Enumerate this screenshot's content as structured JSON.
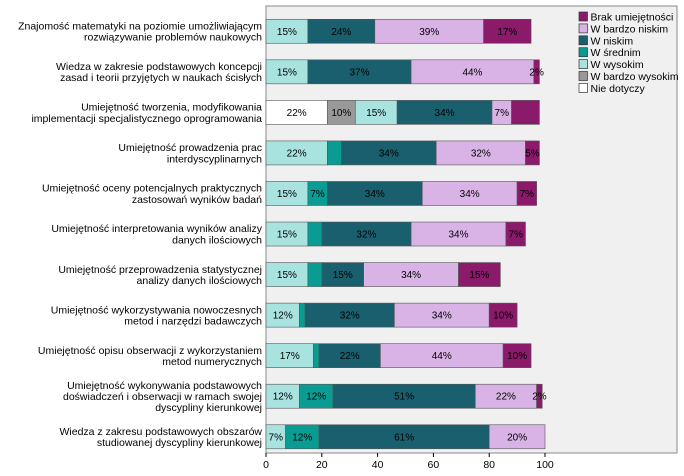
{
  "chart_data": {
    "type": "bar",
    "orientation": "horizontal",
    "stacked": true,
    "categories": [
      "Znajomość matematyki na poziomie umożliwiającym rozwiązywanie problemów naukowych",
      "Wiedza w zakresie podstawowych koncepcji zasad i teorii przyjętych w naukach ścisłych",
      "Umiejętność tworzenia, modyfikowania implementacji specjalistycznego oprogramowania",
      "Umiejętność prowadzenia prac interdyscyplinarnych",
      "Umiejętność oceny potencjalnych praktycznych zastosowań wyników badań",
      "Umiejętność interpretowania wyników analizy danych ilościowych",
      "Umiejętność przeprowadzenia statystycznej analizy danych ilościowych",
      "Umiejętność wykorzystywania nowoczesnych metod i narzędzi badawczych",
      "Umiejętność opisu obserwacji z wykorzystaniem metod numerycznych",
      "Umiejętność wykonywania podstawowych doświadczeń i obserwacji w ramach swojej dyscypliny kierunkowej",
      "Wiedza z zakresu podstawowych obszarów studiowanej dyscypliny kierunkowej"
    ],
    "category_lines": [
      [
        "Znajomość matematyki na poziomie umożliwiającym",
        "rozwiązywanie problemów naukowych"
      ],
      [
        "Wiedza w zakresie podstawowych koncepcji",
        "zasad i teorii przyjętych w naukach ścisłych"
      ],
      [
        "Umiejętność tworzenia, modyfikowania",
        "implementacji specjalistycznego oprogramowania"
      ],
      [
        "Umiejętność prowadzenia prac",
        "interdyscyplinarnych"
      ],
      [
        "Umiejętność oceny potencjalnych praktycznych",
        "zastosowań wyników badań"
      ],
      [
        "Umiejętność interpretowania wyników analizy",
        "danych ilościowych"
      ],
      [
        "Umiejętność przeprowadzenia statystycznej",
        "analizy danych ilościowych"
      ],
      [
        "Umiejętność wykorzystywania nowoczesnych",
        "metod i narzędzi badawczych"
      ],
      [
        "Umiejętność opisu obserwacji z wykorzystaniem",
        "metod numerycznych"
      ],
      [
        "Umiejętność wykonywania podstawowych",
        "doświadczeń i obserwacji w ramach swojej",
        "dyscypliny kierunkowej"
      ],
      [
        "Wiedza z zakresu podstawowych obszarów",
        "studiowanej dyscypliny kierunkowej"
      ]
    ],
    "series": [
      {
        "name": "Nie dotyczy",
        "color": "#ffffff",
        "values": [
          0,
          0,
          22,
          0,
          0,
          0,
          0,
          0,
          0,
          0,
          0
        ],
        "labels": [
          "",
          "",
          "22%",
          "",
          "",
          "",
          "",
          "",
          "",
          "",
          ""
        ]
      },
      {
        "name": "W bardzo wysokim",
        "color": "#999999",
        "values": [
          0,
          0,
          10,
          0,
          0,
          0,
          0,
          0,
          0,
          0,
          0
        ],
        "labels": [
          "",
          "",
          "10%",
          "",
          "",
          "",
          "",
          "",
          "",
          "",
          ""
        ]
      },
      {
        "name": "W wysokim",
        "color": "#a9e3e0",
        "values": [
          15,
          15,
          15,
          22,
          15,
          15,
          15,
          12,
          17,
          12,
          7
        ],
        "labels": [
          "15%",
          "15%",
          "15%",
          "22%",
          "15%",
          "15%",
          "15%",
          "12%",
          "17%",
          "12%",
          "7%"
        ]
      },
      {
        "name": "W średnim",
        "color": "#0a9c93",
        "values": [
          0,
          0,
          0,
          5,
          7,
          5,
          5,
          2,
          2,
          12,
          12
        ],
        "labels": [
          "",
          "",
          "",
          "",
          "7%",
          "",
          "",
          "",
          "",
          "12%",
          "12%"
        ]
      },
      {
        "name": "W niskim",
        "color": "#1a5f6e",
        "values": [
          24,
          37,
          34,
          34,
          34,
          32,
          15,
          32,
          22,
          51,
          61
        ],
        "labels": [
          "24%",
          "37%",
          "34%",
          "34%",
          "34%",
          "32%",
          "15%",
          "32%",
          "22%",
          "51%",
          "61%"
        ]
      },
      {
        "name": "W bardzo niskim",
        "color": "#d9b3e6",
        "values": [
          39,
          44,
          7,
          32,
          34,
          34,
          34,
          34,
          44,
          22,
          20
        ],
        "labels": [
          "39%",
          "44%",
          "7%",
          "32%",
          "34%",
          "34%",
          "34%",
          "34%",
          "44%",
          "22%",
          "20%"
        ]
      },
      {
        "name": "Brak umiejętności",
        "color": "#8b1a6b",
        "values": [
          17,
          2,
          10,
          5,
          7,
          7,
          15,
          10,
          10,
          2,
          0
        ],
        "labels": [
          "17%",
          "2%",
          "",
          "5%",
          "7%",
          "7%",
          "15%",
          "10%",
          "10%",
          "2%",
          ""
        ]
      }
    ],
    "legend": {
      "position": "top-right",
      "entries": [
        {
          "name": "Brak umiejętności",
          "color": "#8b1a6b"
        },
        {
          "name": "W bardzo niskim",
          "color": "#d9b3e6"
        },
        {
          "name": "W niskim",
          "color": "#1a5f6e"
        },
        {
          "name": "W średnim",
          "color": "#0a9c93"
        },
        {
          "name": "W wysokim",
          "color": "#a9e3e0"
        },
        {
          "name": "W bardzo wysokim",
          "color": "#999999"
        },
        {
          "name": "Nie dotyczy",
          "color": "#ffffff"
        }
      ]
    },
    "xlim": [
      0,
      100
    ],
    "xticks": [
      0,
      20,
      40,
      60,
      80,
      100
    ],
    "xlabel": "",
    "ylabel": "",
    "title": "",
    "grid": false
  }
}
